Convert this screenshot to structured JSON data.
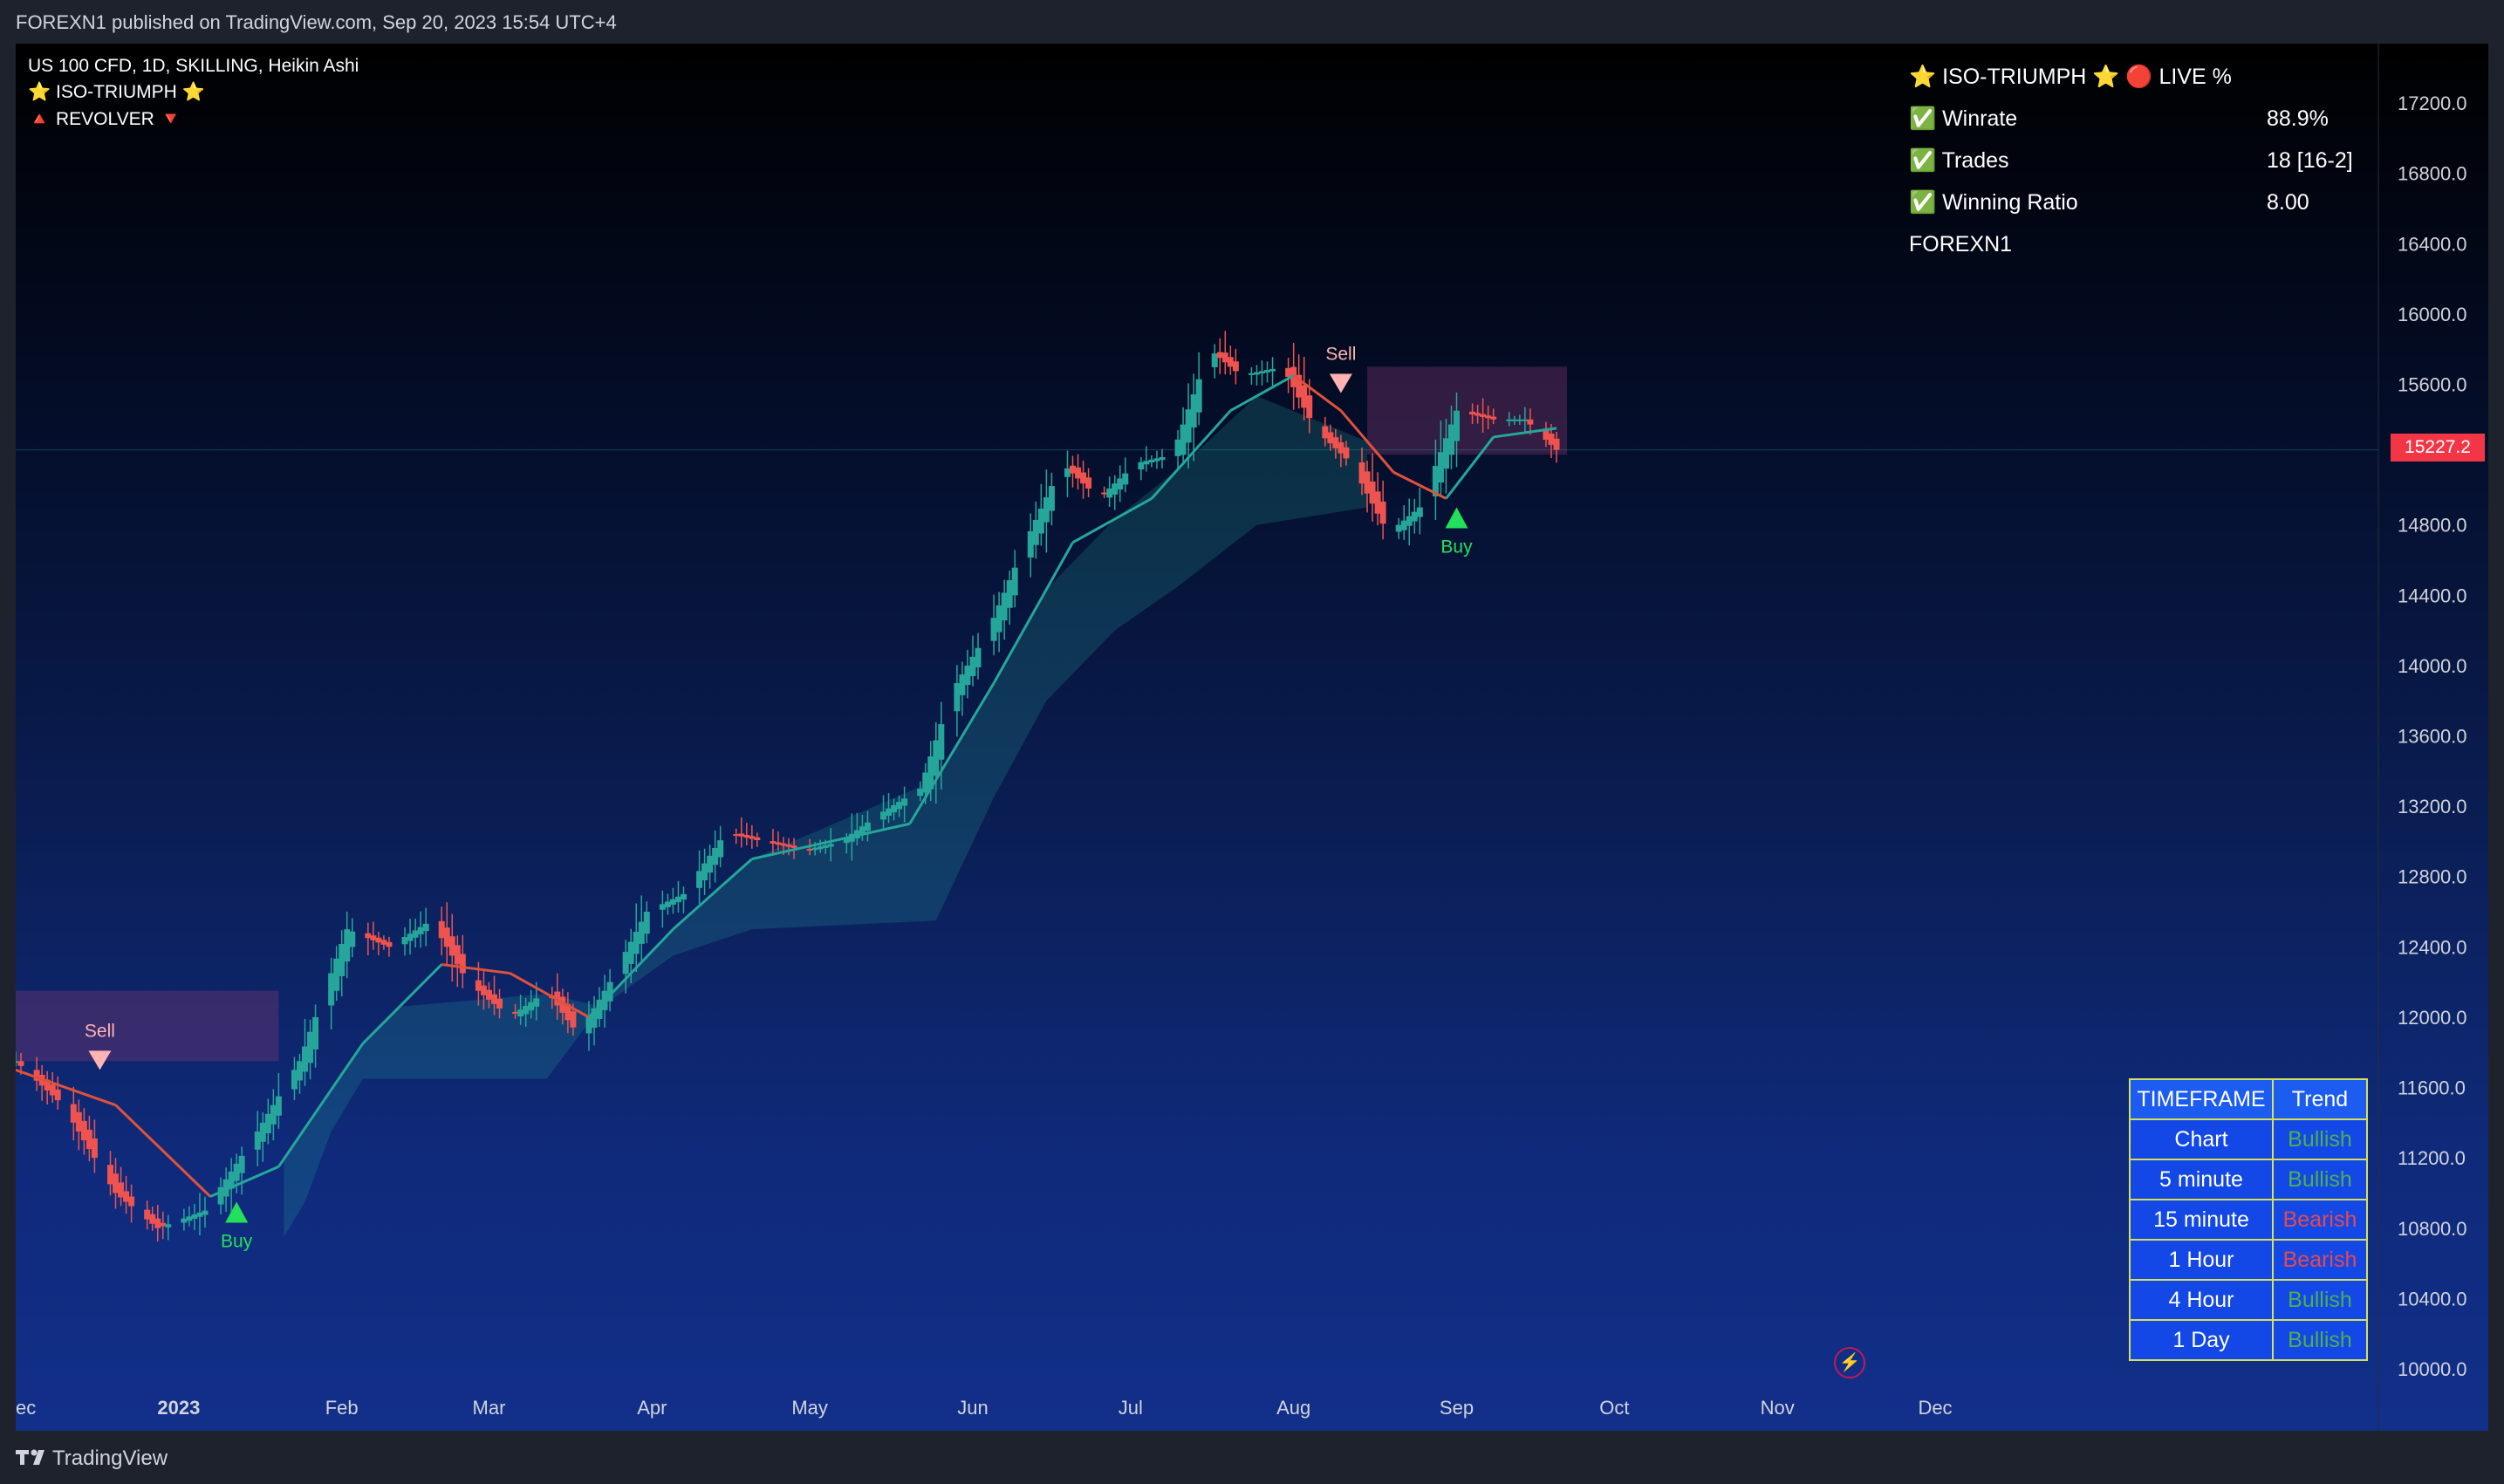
{
  "header": {
    "published": "FOREXN1 published on TradingView.com, Sep 20, 2023 15:54 UTC+4"
  },
  "legend": {
    "symbol_line": "US 100 CFD, 1D, SKILLING, Heikin Ashi",
    "indicator1": "⭐ ISO-TRIUMPH ⭐",
    "indicator2": "🔺 REVOLVER 🔻"
  },
  "stats_panel": {
    "title": "⭐ ISO-TRIUMPH ⭐  🔴 LIVE %",
    "rows": [
      {
        "label": "✅ Winrate",
        "value": "88.9%"
      },
      {
        "label": "✅ Trades",
        "value": "18 [16-2]"
      },
      {
        "label": "✅ Winning Ratio",
        "value": "8.00"
      }
    ],
    "author": "FOREXN1"
  },
  "timeframe_table": {
    "header": [
      "TIMEFRAME",
      "Trend"
    ],
    "rows": [
      {
        "timeframe": "Chart",
        "trend": "Bullish",
        "state": "bull"
      },
      {
        "timeframe": "5 minute",
        "trend": "Bullish",
        "state": "bull"
      },
      {
        "timeframe": "15 minute",
        "trend": "Bearish",
        "state": "bear"
      },
      {
        "timeframe": "1 Hour",
        "trend": "Bearish",
        "state": "bear"
      },
      {
        "timeframe": "4 Hour",
        "trend": "Bullish",
        "state": "bull"
      },
      {
        "timeframe": "1 Day",
        "trend": "Bullish",
        "state": "bull"
      }
    ]
  },
  "current_price": "15227.2",
  "footer": {
    "brand": "TradingView"
  },
  "colors": {
    "bull": "#26a69a",
    "bear": "#ef5350",
    "buy": "#22e05a",
    "sell": "#ffb3b3",
    "price_tag": "#f23645"
  },
  "chart_data": {
    "type": "candlestick",
    "chart_style": "Heikin Ashi",
    "ylim": [
      9850,
      17300
    ],
    "y_ticks": [
      "17200.0",
      "16800.0",
      "16400.0",
      "16000.0",
      "15600.0",
      "15200.0",
      "14800.0",
      "14400.0",
      "14000.0",
      "13600.0",
      "13200.0",
      "12800.0",
      "12400.0",
      "12000.0",
      "11600.0",
      "11200.0",
      "10800.0",
      "10400.0",
      "10000.0"
    ],
    "x_labels": [
      {
        "label": "ec",
        "date": "2022-12-01",
        "bold": false
      },
      {
        "label": "2023",
        "date": "2023-01-01",
        "bold": true
      },
      {
        "label": "Feb",
        "date": "2023-02-01",
        "bold": false
      },
      {
        "label": "Mar",
        "date": "2023-03-01",
        "bold": false
      },
      {
        "label": "Apr",
        "date": "2023-04-01",
        "bold": false
      },
      {
        "label": "May",
        "date": "2023-05-01",
        "bold": false
      },
      {
        "label": "Jun",
        "date": "2023-06-01",
        "bold": false
      },
      {
        "label": "Jul",
        "date": "2023-07-01",
        "bold": false
      },
      {
        "label": "Aug",
        "date": "2023-08-01",
        "bold": false
      },
      {
        "label": "Sep",
        "date": "2023-09-01",
        "bold": false
      },
      {
        "label": "Oct",
        "date": "2023-10-01",
        "bold": false
      },
      {
        "label": "Nov",
        "date": "2023-11-01",
        "bold": false
      },
      {
        "label": "Dec",
        "date": "2023-12-01",
        "bold": false
      }
    ],
    "price_path": [
      [
        "2022-12-01",
        11750
      ],
      [
        "2022-12-10",
        11500
      ],
      [
        "2022-12-20",
        11000
      ],
      [
        "2022-12-28",
        10800
      ],
      [
        "2023-01-06",
        10900
      ],
      [
        "2023-01-15",
        11300
      ],
      [
        "2023-01-24",
        11750
      ],
      [
        "2023-02-02",
        12500
      ],
      [
        "2023-02-10",
        12400
      ],
      [
        "2023-02-18",
        12550
      ],
      [
        "2023-02-25",
        12200
      ],
      [
        "2023-03-05",
        12000
      ],
      [
        "2023-03-12",
        12150
      ],
      [
        "2023-03-18",
        11900
      ],
      [
        "2023-03-24",
        12200
      ],
      [
        "2023-03-31",
        12600
      ],
      [
        "2023-04-07",
        12700
      ],
      [
        "2023-04-15",
        13050
      ],
      [
        "2023-04-22",
        13000
      ],
      [
        "2023-04-30",
        12950
      ],
      [
        "2023-05-07",
        13000
      ],
      [
        "2023-05-14",
        13150
      ],
      [
        "2023-05-22",
        13300
      ],
      [
        "2023-05-28",
        13850
      ],
      [
        "2023-06-04",
        14200
      ],
      [
        "2023-06-11",
        14700
      ],
      [
        "2023-06-18",
        15150
      ],
      [
        "2023-06-25",
        14950
      ],
      [
        "2023-07-02",
        15150
      ],
      [
        "2023-07-09",
        15200
      ],
      [
        "2023-07-16",
        15800
      ],
      [
        "2023-07-22",
        15650
      ],
      [
        "2023-07-30",
        15700
      ],
      [
        "2023-08-05",
        15350
      ],
      [
        "2023-08-12",
        15150
      ],
      [
        "2023-08-19",
        14750
      ],
      [
        "2023-08-25",
        14900
      ],
      [
        "2023-09-01",
        15450
      ],
      [
        "2023-09-08",
        15400
      ],
      [
        "2023-09-14",
        15400
      ],
      [
        "2023-09-20",
        15227
      ]
    ],
    "trend_line": [
      [
        "2022-12-01",
        11700
      ],
      [
        "2022-12-20",
        11500
      ],
      [
        "2023-01-07",
        10980
      ],
      [
        "2023-01-20",
        11150
      ],
      [
        "2023-02-05",
        11850
      ],
      [
        "2023-02-20",
        12300
      ],
      [
        "2023-03-05",
        12250
      ],
      [
        "2023-03-20",
        12000
      ],
      [
        "2023-04-05",
        12500
      ],
      [
        "2023-04-20",
        12900
      ],
      [
        "2023-05-05",
        13000
      ],
      [
        "2023-05-20",
        13100
      ],
      [
        "2023-06-05",
        13900
      ],
      [
        "2023-06-20",
        14700
      ],
      [
        "2023-07-05",
        14950
      ],
      [
        "2023-07-20",
        15450
      ],
      [
        "2023-08-01",
        15650
      ],
      [
        "2023-08-10",
        15450
      ],
      [
        "2023-08-20",
        15100
      ],
      [
        "2023-08-30",
        14950
      ],
      [
        "2023-09-08",
        15300
      ],
      [
        "2023-09-20",
        15350
      ]
    ],
    "bull_zone": [
      {
        "date": "2023-01-21",
        "lower": 10750
      },
      {
        "date": "2023-01-25",
        "lower": 10950
      },
      {
        "date": "2023-01-30",
        "lower": 11350
      },
      {
        "date": "2023-02-05",
        "lower": 11650
      },
      {
        "date": "2023-02-12",
        "lower": 11650
      },
      {
        "date": "2023-03-12",
        "lower": 11650
      },
      {
        "date": "2023-03-22",
        "lower": 12050
      },
      {
        "date": "2023-04-05",
        "lower": 12350
      },
      {
        "date": "2023-04-20",
        "lower": 12500
      },
      {
        "date": "2023-05-25",
        "lower": 12550
      },
      {
        "date": "2023-06-05",
        "lower": 13250
      },
      {
        "date": "2023-06-15",
        "lower": 13800
      },
      {
        "date": "2023-06-28",
        "lower": 14200
      },
      {
        "date": "2023-07-10",
        "lower": 14450
      },
      {
        "date": "2023-07-25",
        "lower": 14800
      },
      {
        "date": "2023-08-15",
        "lower": 14900
      }
    ],
    "bear_zones": [
      {
        "start": "2022-12-01",
        "end": "2023-01-20",
        "upper": 12150,
        "lower_line": 11750
      },
      {
        "start": "2023-08-15",
        "end": "2023-09-22",
        "upper": 15700,
        "lower_line": 15200
      }
    ],
    "signals": [
      {
        "type": "Sell",
        "date": "2022-12-17",
        "price": 11700
      },
      {
        "type": "Buy",
        "date": "2023-01-12",
        "price": 11000
      },
      {
        "type": "Sell",
        "date": "2023-08-10",
        "price": 15550
      },
      {
        "type": "Buy",
        "date": "2023-09-01",
        "price": 14950
      }
    ],
    "last_price": 15227.2
  }
}
